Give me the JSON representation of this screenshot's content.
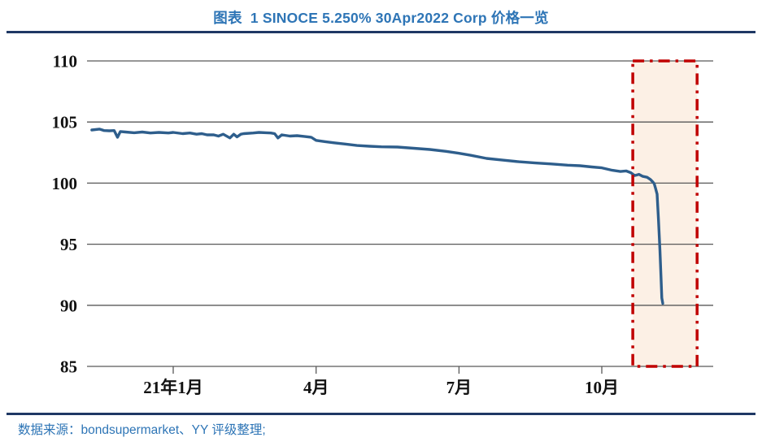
{
  "page": {
    "title": "图表  1 SINOCE 5.250% 30Apr2022 Corp 价格一览"
  },
  "footer": {
    "source": "数据来源：bondsupermarket、YY 评级整理;"
  },
  "colors": {
    "accent_blue": "#2E75B6",
    "rule_navy": "#1F3864",
    "line_blue": "#2E5E8C",
    "grid_gray": "#595959",
    "highlight_red": "#C00000",
    "highlight_fill": "#FCF0E5",
    "tick_text": "#121212"
  },
  "chart_data": {
    "type": "line",
    "title": "SINOCE 5.250% 30Apr2022 Corp 价格一览",
    "ylabel": "",
    "xlabel": "",
    "ylim": [
      85,
      110
    ],
    "y_ticks": [
      110,
      105,
      100,
      95,
      90,
      85
    ],
    "x_unit": "months since 2021-01 (negative = late 2020)",
    "xlim": [
      -1.81,
      11.34
    ],
    "x_ticks": [
      {
        "label": "21年1月",
        "t": 0
      },
      {
        "label": "4月",
        "t": 3
      },
      {
        "label": "7月",
        "t": 6
      },
      {
        "label": "10月",
        "t": 9
      }
    ],
    "grid": "horizontal",
    "legend": "none",
    "highlight_region": {
      "t_start": 9.65,
      "t_end": 11.0,
      "v_top": 110,
      "v_bottom": 85
    },
    "series": [
      {
        "name": "SINOCE 5.250% 30Apr2022 Corp",
        "points": [
          [
            -1.71,
            104.35
          ],
          [
            -1.55,
            104.42
          ],
          [
            -1.45,
            104.3
          ],
          [
            -1.34,
            104.28
          ],
          [
            -1.24,
            104.3
          ],
          [
            -1.17,
            103.75
          ],
          [
            -1.11,
            104.22
          ],
          [
            -1.0,
            104.18
          ],
          [
            -0.82,
            104.12
          ],
          [
            -0.65,
            104.18
          ],
          [
            -0.48,
            104.1
          ],
          [
            -0.3,
            104.15
          ],
          [
            -0.1,
            104.1
          ],
          [
            0.0,
            104.15
          ],
          [
            0.2,
            104.05
          ],
          [
            0.35,
            104.1
          ],
          [
            0.49,
            104.0
          ],
          [
            0.6,
            104.05
          ],
          [
            0.71,
            103.95
          ],
          [
            0.85,
            103.95
          ],
          [
            0.95,
            103.85
          ],
          [
            1.05,
            104.0
          ],
          [
            1.19,
            103.7
          ],
          [
            1.27,
            104.0
          ],
          [
            1.34,
            103.78
          ],
          [
            1.42,
            104.0
          ],
          [
            1.48,
            104.05
          ],
          [
            1.68,
            104.1
          ],
          [
            1.8,
            104.15
          ],
          [
            1.95,
            104.12
          ],
          [
            2.05,
            104.1
          ],
          [
            2.13,
            104.05
          ],
          [
            2.2,
            103.7
          ],
          [
            2.28,
            103.95
          ],
          [
            2.45,
            103.85
          ],
          [
            2.6,
            103.88
          ],
          [
            2.75,
            103.82
          ],
          [
            2.9,
            103.75
          ],
          [
            3.0,
            103.5
          ],
          [
            3.18,
            103.4
          ],
          [
            3.38,
            103.3
          ],
          [
            3.61,
            103.2
          ],
          [
            3.86,
            103.08
          ],
          [
            4.12,
            103.02
          ],
          [
            4.37,
            102.97
          ],
          [
            4.71,
            102.95
          ],
          [
            5.05,
            102.85
          ],
          [
            5.39,
            102.75
          ],
          [
            5.73,
            102.6
          ],
          [
            5.99,
            102.45
          ],
          [
            6.24,
            102.28
          ],
          [
            6.58,
            102.02
          ],
          [
            6.92,
            101.88
          ],
          [
            7.26,
            101.75
          ],
          [
            7.6,
            101.65
          ],
          [
            7.94,
            101.57
          ],
          [
            8.28,
            101.47
          ],
          [
            8.54,
            101.42
          ],
          [
            8.79,
            101.32
          ],
          [
            9.0,
            101.25
          ],
          [
            9.22,
            101.05
          ],
          [
            9.39,
            100.95
          ],
          [
            9.51,
            101.0
          ],
          [
            9.61,
            100.85
          ],
          [
            9.69,
            100.62
          ],
          [
            9.78,
            100.72
          ],
          [
            9.86,
            100.55
          ],
          [
            9.95,
            100.48
          ],
          [
            10.02,
            100.3
          ],
          [
            10.07,
            100.1
          ],
          [
            10.1,
            99.95
          ],
          [
            10.13,
            99.55
          ],
          [
            10.16,
            99.1
          ],
          [
            10.19,
            97.0
          ],
          [
            10.22,
            94.5
          ],
          [
            10.24,
            92.5
          ],
          [
            10.26,
            90.6
          ],
          [
            10.28,
            90.15
          ]
        ]
      }
    ]
  }
}
